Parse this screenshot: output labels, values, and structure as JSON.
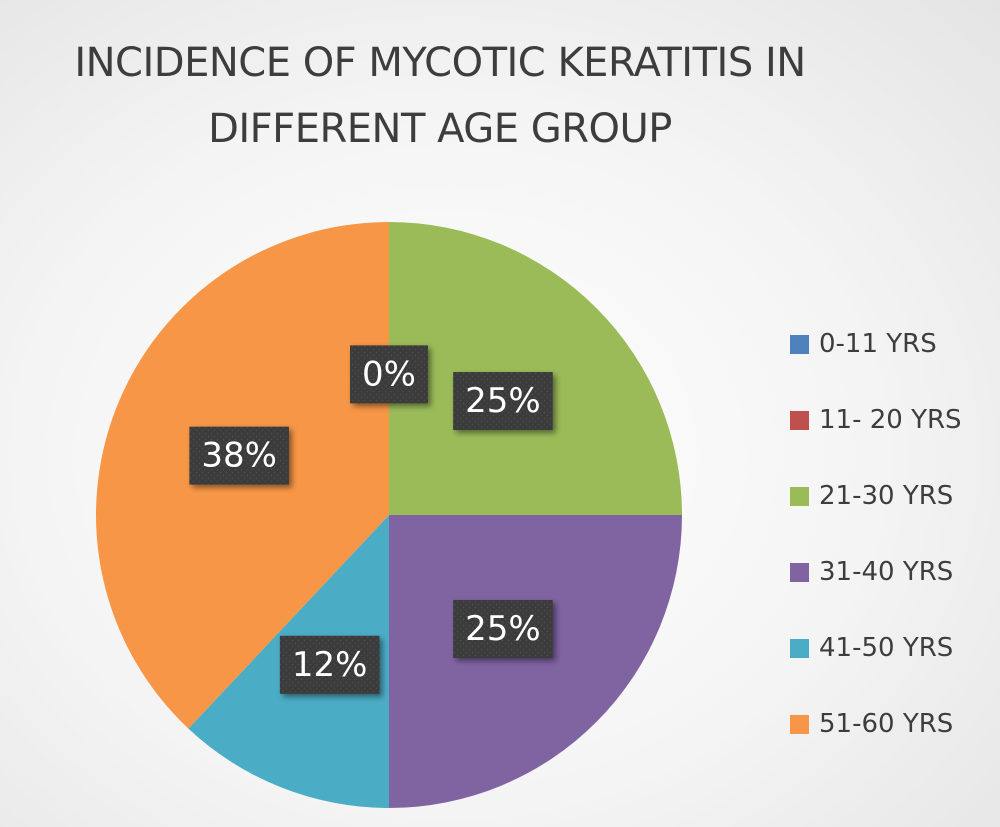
{
  "chart_data": {
    "type": "pie",
    "title": "INCIDENCE OF MYCOTIC KERATITIS IN DIFFERENT AGE GROUP",
    "title_lines": [
      "INCIDENCE OF MYCOTIC KERATITIS IN",
      "DIFFERENT AGE GROUP"
    ],
    "categories": [
      "0-11 YRS",
      "11- 20 YRS",
      "21-30 YRS",
      "31-40 YRS",
      "41-50 YRS",
      "51-60 YRS"
    ],
    "values": [
      0,
      0,
      25,
      25,
      12,
      38
    ],
    "data_labels": [
      "0%",
      "",
      "25%",
      "25%",
      "12%",
      "38%"
    ],
    "colors": [
      "#4f81bd",
      "#c0504d",
      "#9bbb59",
      "#8064a2",
      "#4bacc6",
      "#f79646"
    ],
    "legend_position": "right"
  }
}
